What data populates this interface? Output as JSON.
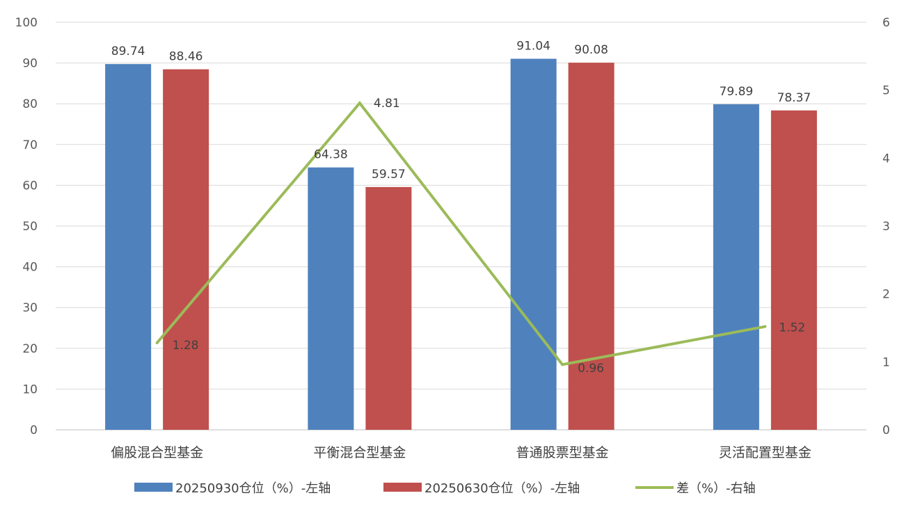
{
  "chart_data": {
    "type": "bar",
    "categories": [
      "偏股混合型基金",
      "平衡混合型基金",
      "普通股票型基金",
      "灵活配置型基金"
    ],
    "series": [
      {
        "name": "20250930仓位（%）-左轴",
        "type": "bar",
        "axis": "left",
        "color": "#4F81BD",
        "values": [
          89.74,
          64.38,
          91.04,
          79.89
        ],
        "labels": [
          "89.74",
          "64.38",
          "91.04",
          "79.89"
        ]
      },
      {
        "name": "20250630仓位（%）-左轴",
        "type": "bar",
        "axis": "left",
        "color": "#C0504D",
        "values": [
          88.46,
          59.57,
          90.08,
          78.37
        ],
        "labels": [
          "88.46",
          "59.57",
          "90.08",
          "78.37"
        ]
      },
      {
        "name": "差（%）-右轴",
        "type": "line",
        "axis": "right",
        "color": "#9BBB59",
        "values": [
          1.28,
          4.81,
          0.96,
          1.52
        ],
        "labels": [
          "1.28",
          "4.81",
          "0.96",
          "1.52"
        ]
      }
    ],
    "y_left": {
      "min": 0,
      "max": 100,
      "ticks": [
        "0",
        "10",
        "20",
        "30",
        "40",
        "50",
        "60",
        "70",
        "80",
        "90",
        "100"
      ]
    },
    "y_right": {
      "min": 0,
      "max": 6,
      "ticks": [
        "0",
        "1",
        "2",
        "3",
        "4",
        "5",
        "6"
      ]
    },
    "grid": true,
    "legend_position": "bottom"
  }
}
